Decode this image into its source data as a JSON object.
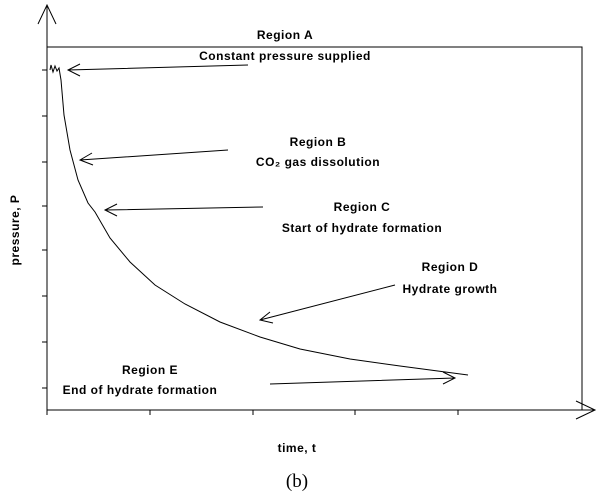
{
  "regions": [
    {
      "name": "Region A",
      "description": "Constant pressure supplied"
    },
    {
      "name": "Region B",
      "description": "CO₂ gas dissolution"
    },
    {
      "name": "Region C",
      "description": "Start of hydrate formation"
    },
    {
      "name": "Region D",
      "description": "Hydrate growth"
    },
    {
      "name": "Region E",
      "description": "End of hydrate formation"
    }
  ],
  "y_axis_label": "pressure, P",
  "x_axis_label": "time, t",
  "caption": "(b)"
}
